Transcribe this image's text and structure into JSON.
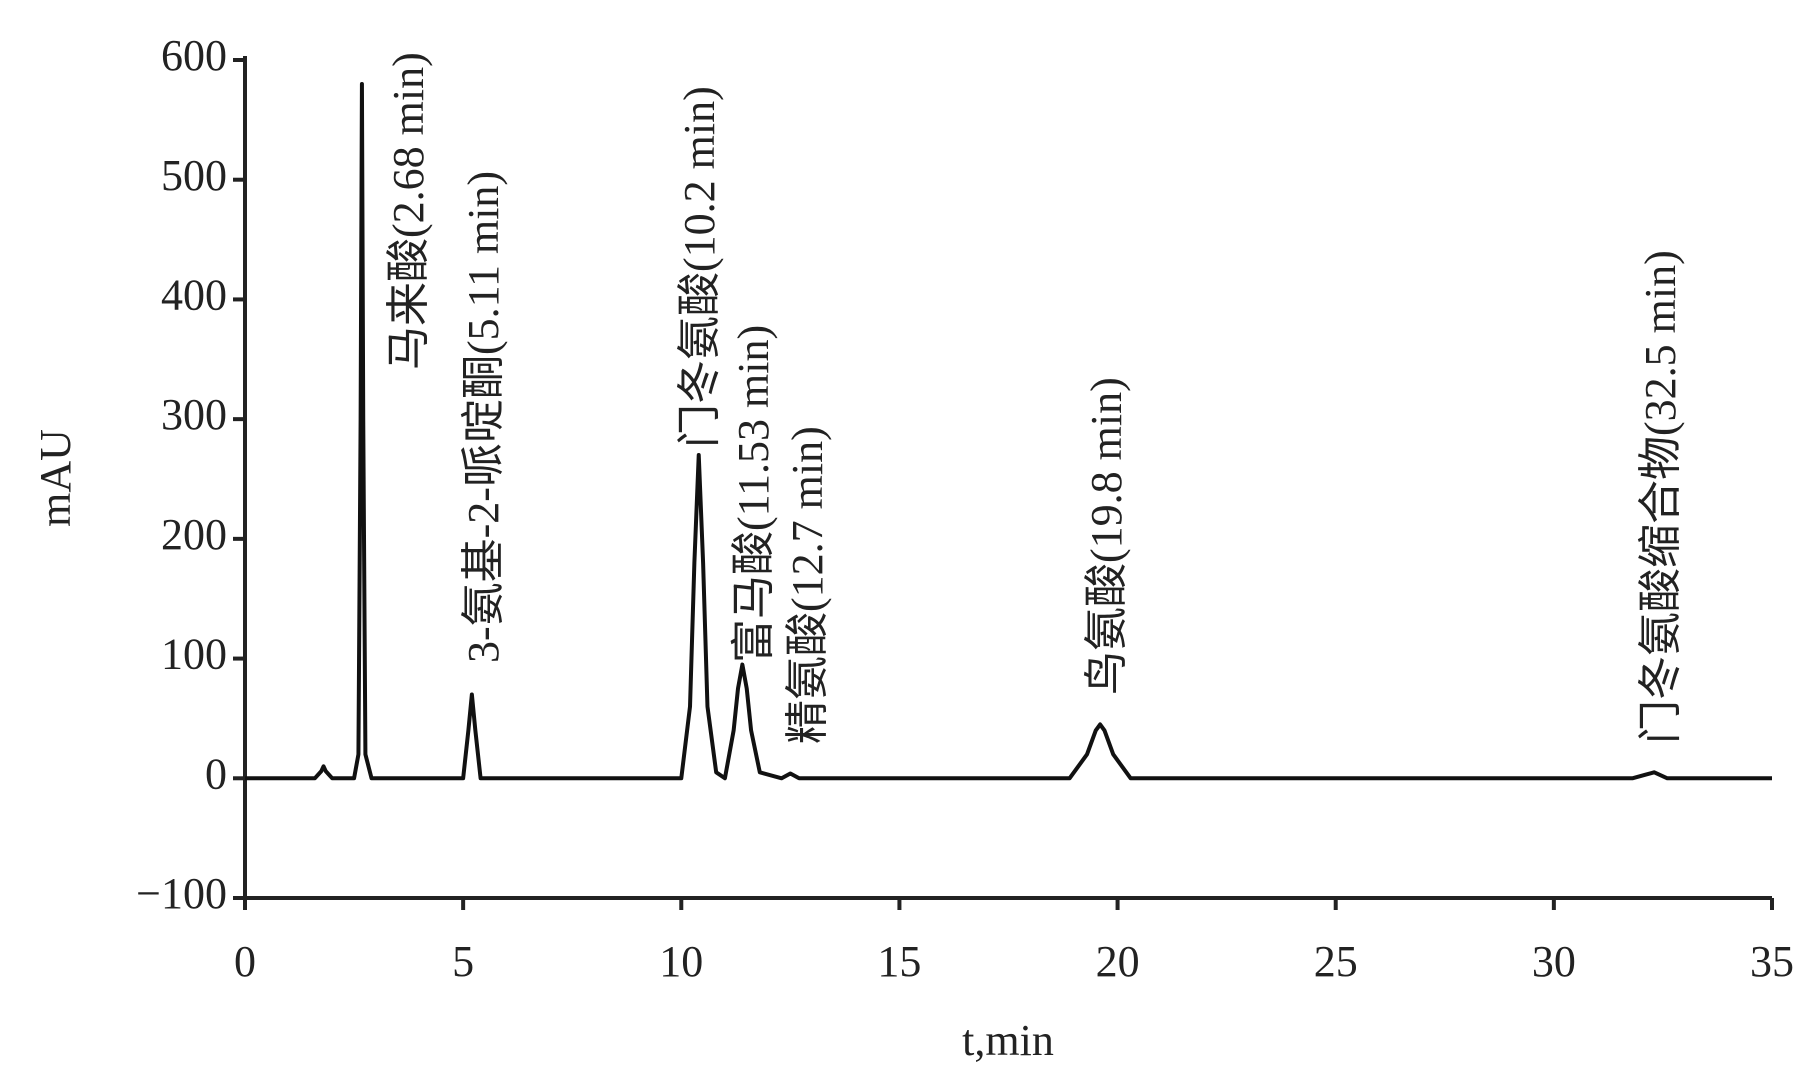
{
  "chart_data": {
    "type": "line",
    "y_label": "mAU",
    "x_label": "t,min",
    "x": [
      0,
      1.6,
      1.75,
      1.8,
      1.85,
      2.0,
      2.5,
      2.6,
      2.65,
      2.68,
      2.71,
      2.76,
      2.9,
      5.0,
      5.12,
      5.2,
      5.28,
      5.4,
      10.0,
      10.2,
      10.3,
      10.4,
      10.5,
      10.6,
      10.8,
      11.0,
      11.2,
      11.3,
      11.4,
      11.5,
      11.6,
      11.8,
      12.3,
      12.5,
      12.7,
      18.9,
      19.3,
      19.5,
      19.6,
      19.7,
      19.9,
      20.3,
      31.8,
      32.1,
      32.3,
      32.6,
      35
    ],
    "series": [
      {
        "color": "#111111",
        "values": [
          0,
          0,
          6,
          10,
          6,
          0,
          0,
          20,
          300,
          580,
          300,
          20,
          0,
          0,
          40,
          70,
          40,
          0,
          0,
          60,
          180,
          270,
          180,
          60,
          5,
          0,
          40,
          75,
          95,
          75,
          40,
          5,
          0,
          4,
          0,
          0,
          20,
          40,
          45,
          40,
          20,
          0,
          0,
          3,
          5,
          0,
          0
        ]
      }
    ],
    "annotations": [
      "马来酸(2.68 min)",
      "3-氨基-2-哌啶酮(5.11 min)",
      "门冬氨酸(10.2 min)",
      "富马酸(11.53 min)",
      "精氨酸(12.7 min)",
      "鸟氨酸(19.8 min)",
      "门冬氨酸缩合物(32.5 min)"
    ],
    "xlim": [
      0,
      35
    ],
    "xticks": [
      0,
      5,
      10,
      15,
      20,
      25,
      30,
      35
    ],
    "ylim": [
      -100,
      600
    ],
    "yticks": [
      {
        "value": -100,
        "label": "−100"
      },
      0,
      100,
      200,
      300,
      400,
      500,
      600
    ]
  }
}
